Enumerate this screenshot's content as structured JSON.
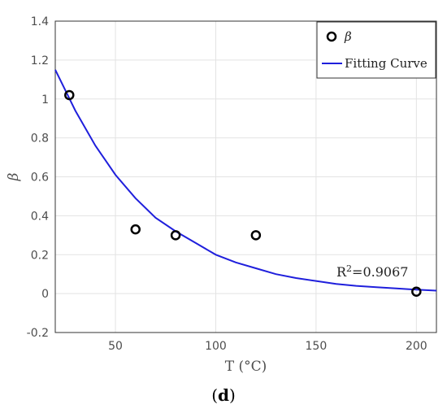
{
  "chart_data": {
    "type": "scatter",
    "xlabel": "T (°C)",
    "ylabel": "β",
    "xlim": [
      20,
      210
    ],
    "ylim": [
      -0.2,
      1.4
    ],
    "x_ticks": [
      50,
      100,
      150,
      200
    ],
    "y_ticks": [
      -0.2,
      0,
      0.2,
      0.4,
      0.6,
      0.8,
      1,
      1.2,
      1.4
    ],
    "grid": true,
    "legend_position": "top-right",
    "series": [
      {
        "name": "β",
        "kind": "scatter",
        "marker": "open-circle",
        "color": "#000000",
        "x": [
          27,
          60,
          80,
          120,
          200
        ],
        "y": [
          1.02,
          0.33,
          0.3,
          0.3,
          0.01
        ]
      },
      {
        "name": "Fitting Curve",
        "kind": "line",
        "color": "#1f1fdc",
        "x": [
          20,
          30,
          40,
          50,
          60,
          70,
          80,
          90,
          100,
          110,
          120,
          130,
          140,
          150,
          160,
          170,
          180,
          190,
          200,
          210
        ],
        "y": [
          1.15,
          0.94,
          0.76,
          0.61,
          0.49,
          0.39,
          0.32,
          0.26,
          0.2,
          0.16,
          0.13,
          0.1,
          0.08,
          0.065,
          0.05,
          0.04,
          0.033,
          0.027,
          0.02,
          0.015
        ]
      }
    ],
    "annotation": {
      "prefix": "R",
      "sup": "2",
      "suffix": "=0.9067",
      "x": 150,
      "y": 0.11
    }
  },
  "panel_label": {
    "open": "(",
    "letter": "d",
    "close": ")"
  }
}
